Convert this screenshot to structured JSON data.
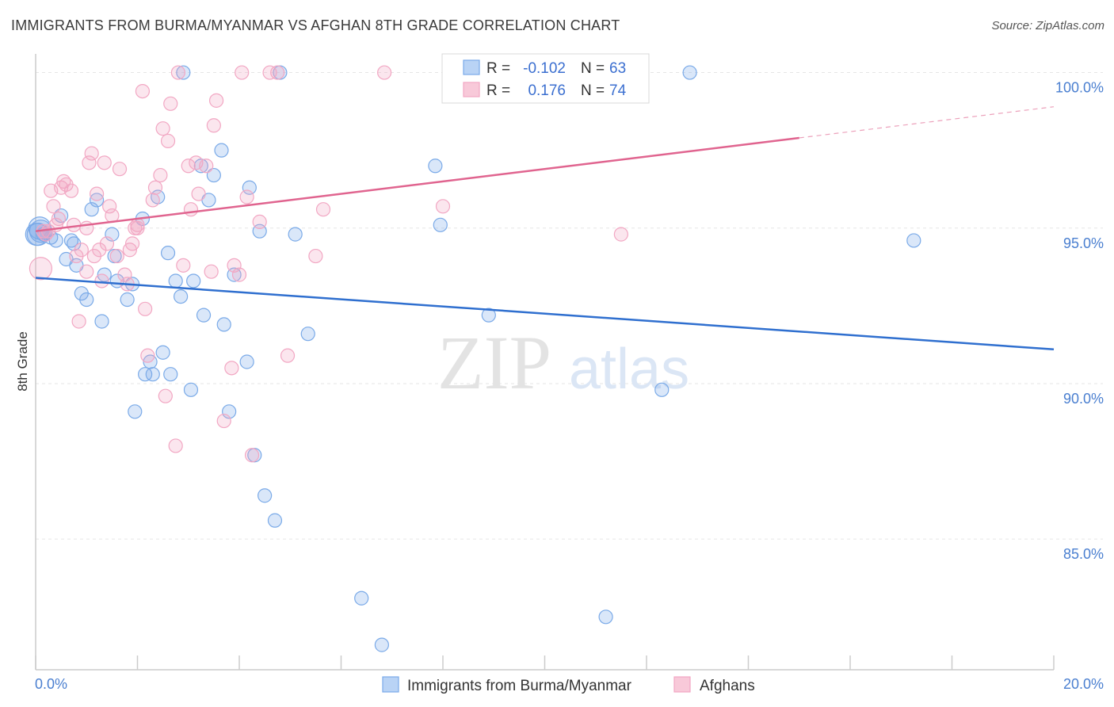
{
  "title": "IMMIGRANTS FROM BURMA/MYANMAR VS AFGHAN 8TH GRADE CORRELATION CHART",
  "source": "Source: ZipAtlas.com",
  "watermark": {
    "zip": "ZIP",
    "atlas": "atlas"
  },
  "legend_box": {
    "r_label": "R =",
    "n_label": "N =",
    "series": [
      {
        "r": "-0.102",
        "n": "63"
      },
      {
        "r": "0.176",
        "n": "74"
      }
    ]
  },
  "chart_data": {
    "type": "scatter",
    "ylabel": "8th Grade",
    "xlim": [
      0,
      20
    ],
    "ylim": [
      80.8,
      100.6
    ],
    "x_tick_labels": [
      "0.0%",
      "20.0%"
    ],
    "y_ticks": [
      85,
      90,
      95,
      100
    ],
    "y_tick_labels": [
      "85.0%",
      "90.0%",
      "95.0%",
      "100.0%"
    ],
    "grid": true,
    "legend_position": "top-center and bottom",
    "series": [
      {
        "name": "Immigrants from Burma/Myanmar",
        "color": "#7aaae8",
        "line_color": "#2f6fcf",
        "r": -0.102,
        "n": 63,
        "trend": {
          "x": [
            0,
            20
          ],
          "y": [
            93.4,
            91.1
          ]
        },
        "points": [
          [
            0.05,
            94.8
          ],
          [
            0.1,
            94.9
          ],
          [
            0.15,
            94.8
          ],
          [
            0.3,
            94.7
          ],
          [
            0.4,
            94.6
          ],
          [
            0.5,
            95.4
          ],
          [
            0.6,
            94.0
          ],
          [
            0.7,
            94.6
          ],
          [
            0.75,
            94.5
          ],
          [
            0.8,
            93.8
          ],
          [
            0.9,
            92.9
          ],
          [
            1.0,
            92.7
          ],
          [
            1.1,
            95.6
          ],
          [
            1.2,
            95.9
          ],
          [
            1.3,
            92.0
          ],
          [
            1.35,
            93.5
          ],
          [
            1.5,
            94.8
          ],
          [
            1.55,
            94.1
          ],
          [
            1.6,
            93.3
          ],
          [
            1.8,
            92.7
          ],
          [
            1.9,
            93.2
          ],
          [
            1.95,
            89.1
          ],
          [
            2.1,
            95.3
          ],
          [
            2.15,
            90.3
          ],
          [
            2.25,
            90.7
          ],
          [
            2.3,
            90.3
          ],
          [
            2.4,
            96.0
          ],
          [
            2.5,
            91.0
          ],
          [
            2.6,
            94.2
          ],
          [
            2.65,
            90.3
          ],
          [
            2.75,
            93.3
          ],
          [
            2.85,
            92.8
          ],
          [
            2.9,
            100.0
          ],
          [
            3.05,
            89.8
          ],
          [
            3.1,
            93.3
          ],
          [
            3.25,
            97.0
          ],
          [
            3.3,
            92.2
          ],
          [
            3.4,
            95.9
          ],
          [
            3.5,
            96.7
          ],
          [
            3.65,
            97.5
          ],
          [
            3.7,
            91.9
          ],
          [
            3.8,
            89.1
          ],
          [
            3.9,
            93.5
          ],
          [
            4.15,
            90.7
          ],
          [
            4.2,
            96.3
          ],
          [
            4.3,
            87.7
          ],
          [
            4.4,
            94.9
          ],
          [
            4.5,
            86.4
          ],
          [
            4.7,
            85.6
          ],
          [
            4.8,
            100.0
          ],
          [
            5.1,
            94.8
          ],
          [
            5.35,
            91.6
          ],
          [
            6.4,
            83.1
          ],
          [
            6.8,
            81.6
          ],
          [
            7.85,
            97.0
          ],
          [
            7.95,
            95.1
          ],
          [
            8.9,
            92.2
          ],
          [
            11.2,
            82.5
          ],
          [
            12.3,
            89.8
          ],
          [
            12.85,
            100.0
          ],
          [
            17.25,
            94.6
          ],
          [
            0.02,
            94.8
          ],
          [
            0.08,
            95.0
          ]
        ]
      },
      {
        "name": "Afghans",
        "color": "#f2a7c3",
        "line_color": "#e0648f",
        "r": 0.176,
        "n": 74,
        "trend": {
          "x": [
            0,
            15
          ],
          "y": [
            94.9,
            97.9
          ]
        },
        "points": [
          [
            0.1,
            93.7
          ],
          [
            0.2,
            94.8
          ],
          [
            0.3,
            96.2
          ],
          [
            0.35,
            95.7
          ],
          [
            0.4,
            95.1
          ],
          [
            0.45,
            95.3
          ],
          [
            0.5,
            96.3
          ],
          [
            0.55,
            96.5
          ],
          [
            0.6,
            96.4
          ],
          [
            0.7,
            96.2
          ],
          [
            0.75,
            95.1
          ],
          [
            0.8,
            94.1
          ],
          [
            0.85,
            92.0
          ],
          [
            0.9,
            94.3
          ],
          [
            1.0,
            95.0
          ],
          [
            1.05,
            97.1
          ],
          [
            1.1,
            97.4
          ],
          [
            1.15,
            94.1
          ],
          [
            1.2,
            96.1
          ],
          [
            1.25,
            94.3
          ],
          [
            1.3,
            93.3
          ],
          [
            1.35,
            97.1
          ],
          [
            1.45,
            95.7
          ],
          [
            1.5,
            95.4
          ],
          [
            1.6,
            94.1
          ],
          [
            1.65,
            96.9
          ],
          [
            1.75,
            93.5
          ],
          [
            1.8,
            93.2
          ],
          [
            1.85,
            94.3
          ],
          [
            1.9,
            94.5
          ],
          [
            1.95,
            95.0
          ],
          [
            2.0,
            95.1
          ],
          [
            2.1,
            99.4
          ],
          [
            2.15,
            92.4
          ],
          [
            2.2,
            90.9
          ],
          [
            2.3,
            95.9
          ],
          [
            2.35,
            96.3
          ],
          [
            2.45,
            96.7
          ],
          [
            2.5,
            98.2
          ],
          [
            2.55,
            89.6
          ],
          [
            2.6,
            97.8
          ],
          [
            2.65,
            99.0
          ],
          [
            2.75,
            88.0
          ],
          [
            2.8,
            100.0
          ],
          [
            2.9,
            93.8
          ],
          [
            3.0,
            97.0
          ],
          [
            3.05,
            95.6
          ],
          [
            3.15,
            97.1
          ],
          [
            3.2,
            96.1
          ],
          [
            3.35,
            97.0
          ],
          [
            3.45,
            93.6
          ],
          [
            3.5,
            98.3
          ],
          [
            3.55,
            99.1
          ],
          [
            3.7,
            88.8
          ],
          [
            3.85,
            90.5
          ],
          [
            3.9,
            93.8
          ],
          [
            4.0,
            93.5
          ],
          [
            4.05,
            100.0
          ],
          [
            4.15,
            96.0
          ],
          [
            4.25,
            87.7
          ],
          [
            4.4,
            95.2
          ],
          [
            4.6,
            100.0
          ],
          [
            4.75,
            100.0
          ],
          [
            4.95,
            90.9
          ],
          [
            5.5,
            94.1
          ],
          [
            5.65,
            95.6
          ],
          [
            6.85,
            100.0
          ],
          [
            8.0,
            95.7
          ],
          [
            11.5,
            94.8
          ],
          [
            0.15,
            94.9
          ],
          [
            0.25,
            94.9
          ],
          [
            1.0,
            93.6
          ],
          [
            1.4,
            94.5
          ],
          [
            2.0,
            95.0
          ]
        ]
      }
    ]
  }
}
